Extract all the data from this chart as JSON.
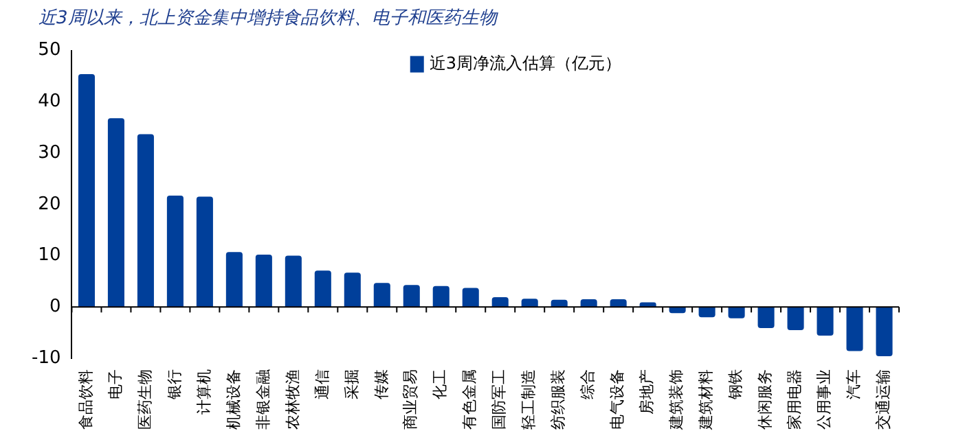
{
  "chart_data": {
    "type": "bar",
    "title": "近3周以来，北上资金集中增持食品饮料、电子和医药生物",
    "categories": [
      "食品饮料",
      "电子",
      "医药生物",
      "银行",
      "计算机",
      "机械设备",
      "非银金融",
      "农林牧渔",
      "通信",
      "采掘",
      "传媒",
      "商业贸易",
      "化工",
      "有色金属",
      "国防军工",
      "轻工制造",
      "纺织服装",
      "综合",
      "电气设备",
      "房地产",
      "建筑装饰",
      "建筑材料",
      "钢铁",
      "休闲服务",
      "家用电器",
      "公用事业",
      "汽车",
      "交通运输"
    ],
    "series": [
      {
        "name": "近3周净流入估算（亿元）",
        "color": "#003f9a",
        "values": [
          45.4,
          36.8,
          33.7,
          21.7,
          21.5,
          10.7,
          10.2,
          10.0,
          7.1,
          6.7,
          4.7,
          4.3,
          4.1,
          3.7,
          1.9,
          1.6,
          1.4,
          1.5,
          1.5,
          0.9,
          -1.2,
          -2.0,
          -2.2,
          -4.1,
          -4.5,
          -5.6,
          -8.6,
          -9.6
        ]
      }
    ],
    "ylim": [
      -10,
      50
    ],
    "yticks": [
      -10,
      0,
      10,
      20,
      30,
      40,
      50
    ],
    "legend": "top right"
  }
}
